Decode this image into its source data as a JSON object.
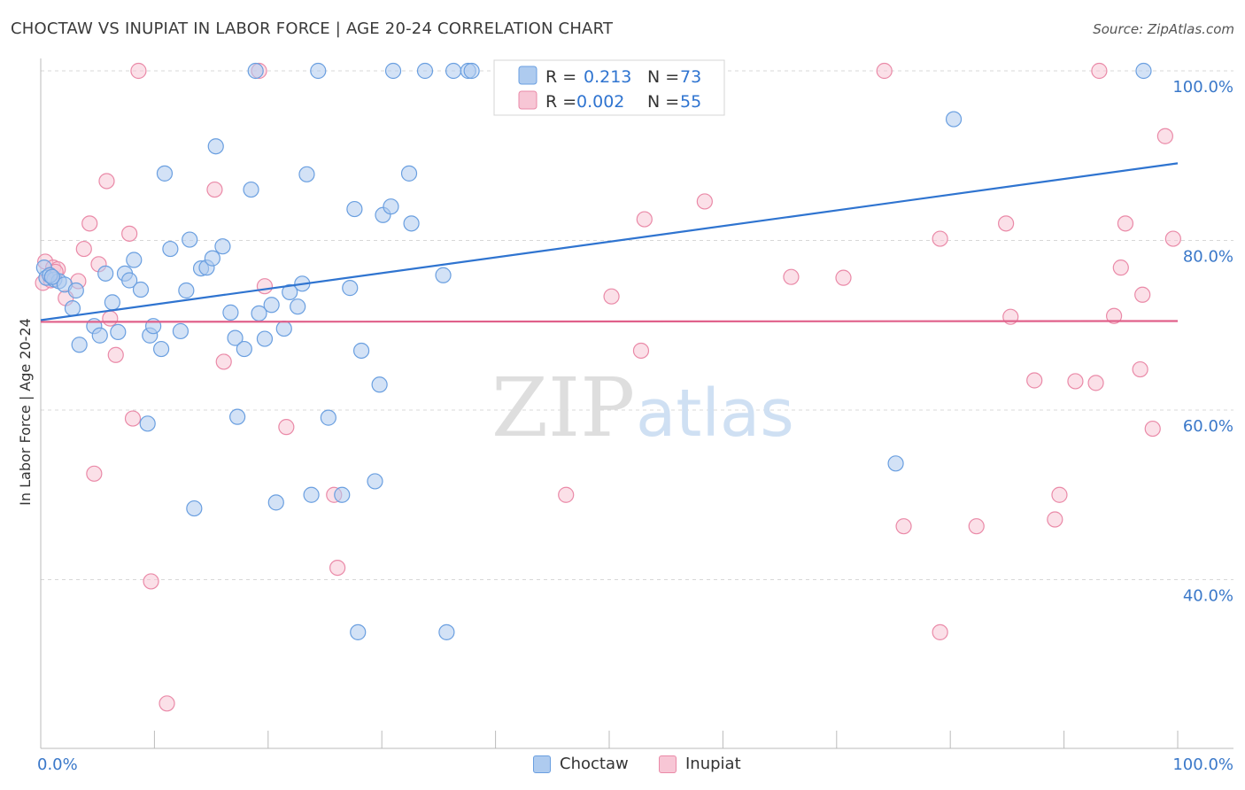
{
  "title": "CHOCTAW VS INUPIAT IN LABOR FORCE | AGE 20-24 CORRELATION CHART",
  "source": "Source: ZipAtlas.com",
  "watermark": {
    "zip": "ZIP",
    "atlas": "atlas"
  },
  "colors": {
    "choctaw_fill": "#aecbef",
    "choctaw_stroke": "#6a9fe0",
    "choctaw_line": "#2f74d0",
    "inupiat_fill": "#f7c6d5",
    "inupiat_stroke": "#ea8aa8",
    "inupiat_line": "#e0608a",
    "grid": "#d8d8d8",
    "tick_text": "#3a78c9"
  },
  "legend": {
    "r_label": "R =",
    "n_label": "N =",
    "choctaw": {
      "r": "0.213",
      "n": "73"
    },
    "inupiat": {
      "r": "0.002",
      "n": "55"
    }
  },
  "bottom_legend": {
    "choctaw": "Choctaw",
    "inupiat": "Inupiat"
  },
  "chart_data": {
    "type": "scatter",
    "title": "CHOCTAW VS INUPIAT IN LABOR FORCE | AGE 20-24 CORRELATION CHART",
    "xlabel": "",
    "ylabel": "In Labor Force | Age 20-24",
    "xlim": [
      0,
      100
    ],
    "ylim": [
      20,
      102
    ],
    "x_tick_labels": [
      "0.0%",
      "100.0%"
    ],
    "y_ticks": [
      40,
      60,
      80,
      100
    ],
    "y_tick_labels": [
      "40.0%",
      "60.0%",
      "80.0%",
      "100.0%"
    ],
    "grid": "horizontal dashed",
    "legend_position": "top-center",
    "series": [
      {
        "name": "Choctaw",
        "trend": {
          "x": [
            0,
            100
          ],
          "y": [
            70.6,
            89.1
          ]
        },
        "points": [
          [
            0.3,
            76.8
          ],
          [
            0.5,
            75.6
          ],
          [
            1.2,
            75.4
          ],
          [
            1.6,
            75.2
          ],
          [
            2.1,
            74.8
          ],
          [
            2.8,
            72.0
          ],
          [
            3.1,
            74.1
          ],
          [
            3.4,
            67.7
          ],
          [
            4.7,
            69.9
          ],
          [
            5.2,
            68.8
          ],
          [
            5.7,
            76.1
          ],
          [
            6.3,
            72.7
          ],
          [
            6.8,
            69.2
          ],
          [
            7.4,
            76.1
          ],
          [
            7.8,
            75.3
          ],
          [
            8.2,
            77.7
          ],
          [
            8.8,
            74.2
          ],
          [
            9.4,
            58.4
          ],
          [
            9.6,
            68.8
          ],
          [
            9.9,
            69.9
          ],
          [
            10.6,
            67.2
          ],
          [
            10.9,
            87.9
          ],
          [
            11.4,
            79.0
          ],
          [
            12.3,
            69.3
          ],
          [
            12.8,
            74.1
          ],
          [
            13.1,
            80.1
          ],
          [
            13.5,
            48.4
          ],
          [
            14.1,
            76.7
          ],
          [
            14.6,
            76.8
          ],
          [
            15.1,
            77.9
          ],
          [
            15.4,
            91.1
          ],
          [
            16.0,
            79.3
          ],
          [
            16.7,
            71.5
          ],
          [
            17.1,
            68.5
          ],
          [
            17.3,
            59.2
          ],
          [
            17.9,
            67.2
          ],
          [
            18.5,
            86.0
          ],
          [
            18.9,
            100.0
          ],
          [
            19.2,
            71.4
          ],
          [
            19.7,
            68.4
          ],
          [
            20.3,
            72.4
          ],
          [
            20.7,
            49.1
          ],
          [
            21.4,
            69.6
          ],
          [
            21.9,
            73.9
          ],
          [
            22.6,
            72.2
          ],
          [
            23.0,
            74.9
          ],
          [
            23.4,
            87.8
          ],
          [
            23.8,
            50.0
          ],
          [
            24.4,
            100.0
          ],
          [
            25.3,
            59.1
          ],
          [
            26.5,
            50.0
          ],
          [
            27.2,
            74.4
          ],
          [
            27.6,
            83.7
          ],
          [
            27.9,
            33.8
          ],
          [
            28.2,
            67.0
          ],
          [
            29.4,
            51.6
          ],
          [
            29.8,
            63.0
          ],
          [
            30.1,
            83.0
          ],
          [
            30.8,
            84.0
          ],
          [
            31.0,
            100.0
          ],
          [
            32.4,
            87.9
          ],
          [
            32.6,
            82.0
          ],
          [
            33.8,
            100.0
          ],
          [
            35.4,
            75.9
          ],
          [
            35.7,
            33.8
          ],
          [
            36.3,
            100.0
          ],
          [
            37.6,
            100.0
          ],
          [
            37.9,
            100.0
          ],
          [
            75.2,
            53.7
          ],
          [
            80.3,
            94.3
          ],
          [
            97.0,
            100.0
          ],
          [
            0.8,
            75.9
          ],
          [
            1.0,
            75.7
          ]
        ]
      },
      {
        "name": "Inupiat",
        "trend": {
          "x": [
            0,
            100
          ],
          "y": [
            70.4,
            70.5
          ]
        },
        "points": [
          [
            0.2,
            75.0
          ],
          [
            0.4,
            77.5
          ],
          [
            1.1,
            76.8
          ],
          [
            1.5,
            76.6
          ],
          [
            2.2,
            73.2
          ],
          [
            3.3,
            75.2
          ],
          [
            3.8,
            79.0
          ],
          [
            4.3,
            82.0
          ],
          [
            4.7,
            52.5
          ],
          [
            5.1,
            77.2
          ],
          [
            5.8,
            87.0
          ],
          [
            6.1,
            70.8
          ],
          [
            6.6,
            66.5
          ],
          [
            7.8,
            80.8
          ],
          [
            8.1,
            59.0
          ],
          [
            8.6,
            100.0
          ],
          [
            9.7,
            39.8
          ],
          [
            11.1,
            25.4
          ],
          [
            15.3,
            86.0
          ],
          [
            16.1,
            65.7
          ],
          [
            19.2,
            100.0
          ],
          [
            19.7,
            74.6
          ],
          [
            21.6,
            58.0
          ],
          [
            25.8,
            50.0
          ],
          [
            26.1,
            41.4
          ],
          [
            46.2,
            50.0
          ],
          [
            50.2,
            73.4
          ],
          [
            52.8,
            67.0
          ],
          [
            53.1,
            82.5
          ],
          [
            58.4,
            84.6
          ],
          [
            66.0,
            75.7
          ],
          [
            70.6,
            75.6
          ],
          [
            74.2,
            100.0
          ],
          [
            75.9,
            46.3
          ],
          [
            79.1,
            80.2
          ],
          [
            79.1,
            33.8
          ],
          [
            82.3,
            46.3
          ],
          [
            84.9,
            82.0
          ],
          [
            85.3,
            71.0
          ],
          [
            87.4,
            63.5
          ],
          [
            89.2,
            47.1
          ],
          [
            89.6,
            50.0
          ],
          [
            91.0,
            63.4
          ],
          [
            92.8,
            63.2
          ],
          [
            93.1,
            100.0
          ],
          [
            94.4,
            71.1
          ],
          [
            95.0,
            76.8
          ],
          [
            95.4,
            82.0
          ],
          [
            96.7,
            64.8
          ],
          [
            96.9,
            73.6
          ],
          [
            97.8,
            57.8
          ],
          [
            98.9,
            92.3
          ],
          [
            99.6,
            80.2
          ],
          [
            0.9,
            75.3
          ],
          [
            1.3,
            76.3
          ]
        ]
      }
    ]
  }
}
